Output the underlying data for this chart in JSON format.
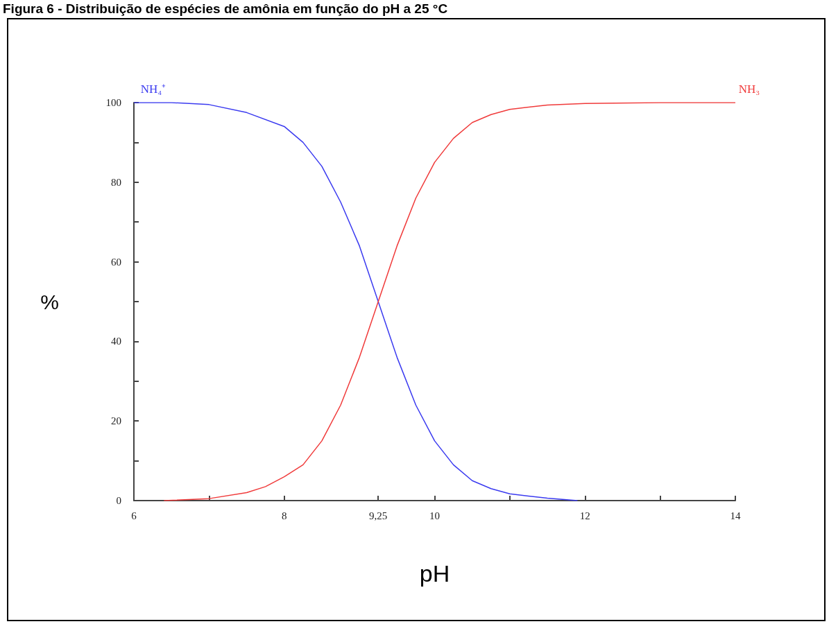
{
  "chart_data": {
    "type": "line",
    "title": "Figura 6 - Distribuição de espécies de amônia em função do pH a 25 °C",
    "xlabel": "pH",
    "ylabel": "%",
    "series": [
      {
        "name": "NH₄⁺",
        "color": "#3a3af0",
        "x": [
          6,
          6.5,
          7,
          7.5,
          8,
          8.25,
          8.5,
          8.75,
          9,
          9.25,
          9.5,
          9.75,
          10,
          10.25,
          10.5,
          10.75,
          11,
          11.5,
          11.9
        ],
        "values": [
          100,
          100,
          99.5,
          97.5,
          94,
          90,
          84,
          75,
          64,
          50,
          36,
          24,
          15,
          9,
          5,
          3,
          1.7,
          0.6,
          0
        ]
      },
      {
        "name": "NH₃",
        "color": "#f03a3a",
        "x": [
          6.4,
          7,
          7.5,
          7.75,
          8,
          8.25,
          8.5,
          8.75,
          9,
          9.25,
          9.5,
          9.75,
          10,
          10.25,
          10.5,
          10.75,
          11,
          11.5,
          12,
          13,
          14
        ],
        "values": [
          0,
          0.5,
          2,
          3.5,
          6,
          9,
          15,
          24,
          36,
          50,
          64,
          76,
          85,
          91,
          95,
          97,
          98.3,
          99.4,
          99.8,
          100,
          100
        ]
      }
    ],
    "xlim": [
      6,
      14
    ],
    "xticks": [
      6,
      {
        "value": 7,
        "label": null
      },
      8,
      {
        "value": 9.25,
        "label": "9,25"
      },
      10,
      {
        "value": 11,
        "label": null
      },
      12,
      {
        "value": 13,
        "label": null
      },
      14
    ],
    "ylim": [
      0,
      100
    ],
    "yticks": [
      0,
      {
        "value": 10,
        "label": null
      },
      20,
      {
        "value": 30,
        "label": null
      },
      40,
      {
        "value": 50,
        "label": null
      },
      60,
      {
        "value": 70,
        "label": null
      },
      80,
      {
        "value": 90,
        "label": null
      },
      100
    ],
    "grid": false,
    "legend": false,
    "marker": "none",
    "line_style": "solid"
  }
}
